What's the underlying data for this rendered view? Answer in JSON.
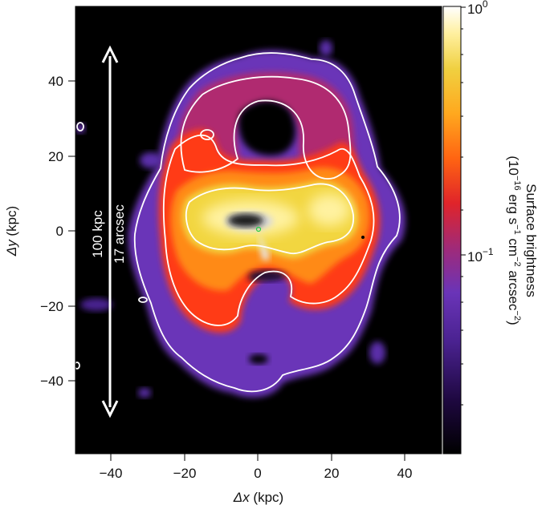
{
  "figure": {
    "x_axis": {
      "label_symbol": "Δx",
      "label_unit": " (kpc)",
      "ticks": [
        "−40",
        "−20",
        "0",
        "20",
        "40"
      ]
    },
    "y_axis": {
      "label_symbol": "Δy",
      "label_unit": " (kpc)",
      "ticks": [
        "40",
        "20",
        "0",
        "−20",
        "−40"
      ]
    },
    "scale_bar": {
      "line1": "100 kpc",
      "line2": "17 arcsec"
    },
    "colorbar": {
      "title_line1": "Surface brightness",
      "title_line2_parts": [
        "(10",
        "−16",
        " erg s",
        "−1",
        " cm",
        "−2",
        " arcsec",
        "−2",
        ")"
      ],
      "tick_top_base": "10",
      "tick_top_exp": "0",
      "tick_mid_base": "10",
      "tick_mid_exp": "−1",
      "scale": "log",
      "colormap": [
        "#000000",
        "#2a0a4a",
        "#5a2ea8",
        "#7a3cc0",
        "#c02a60",
        "#ff2a1a",
        "#ff7a10",
        "#ffb020",
        "#f2d640",
        "#fff2a0",
        "#ffffff"
      ]
    }
  }
}
